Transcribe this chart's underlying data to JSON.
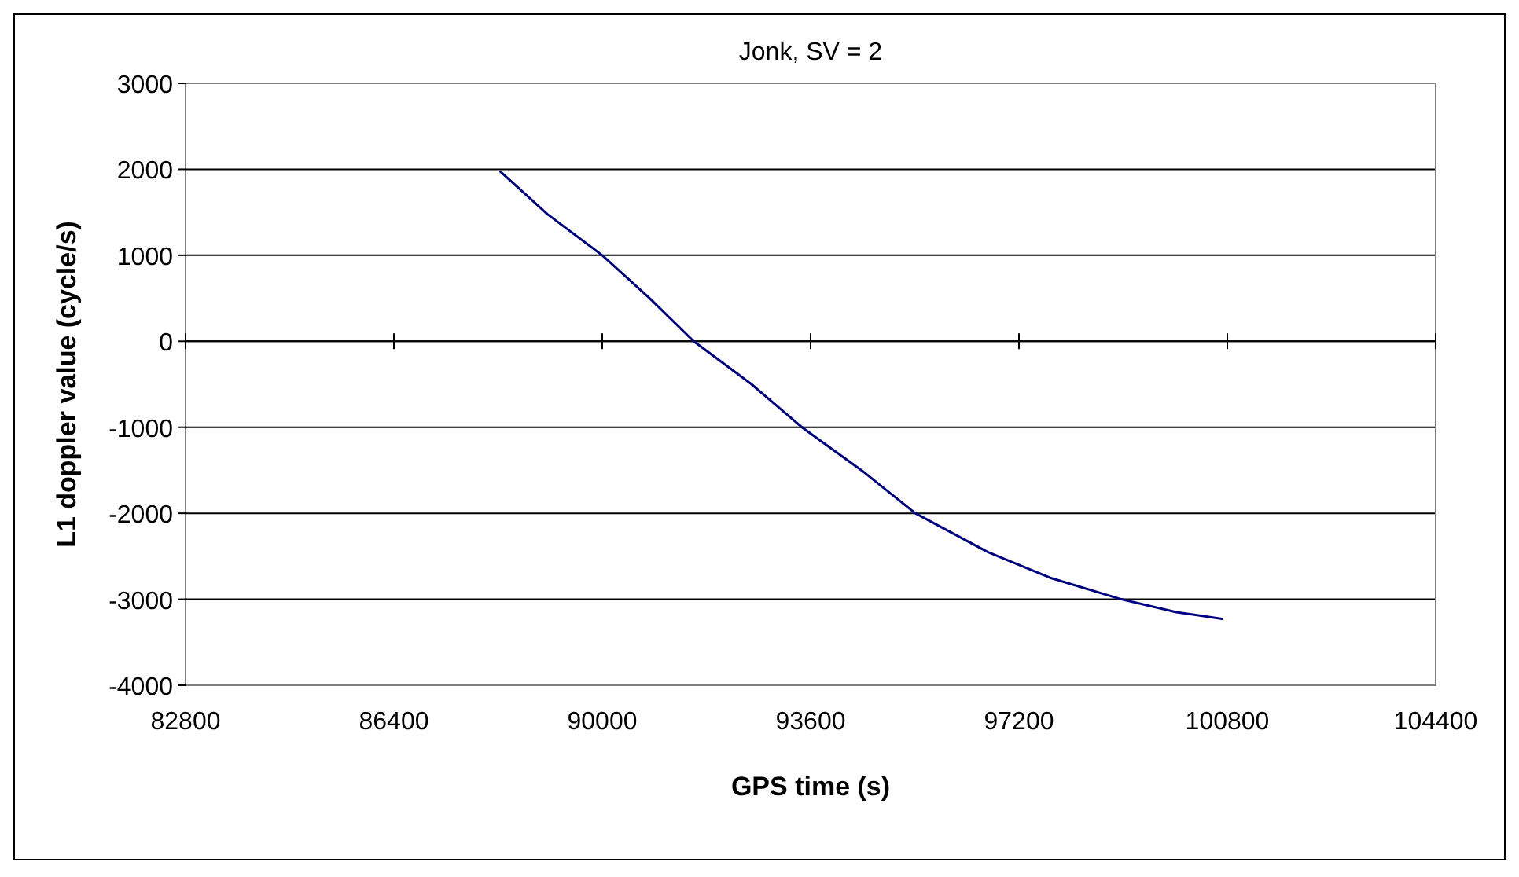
{
  "chart_data": {
    "type": "line",
    "title": "Jonk, SV = 2",
    "xlabel": "GPS time (s)",
    "ylabel": "L1 doppler value (cycle/s)",
    "x": [
      88230,
      89050,
      90000,
      90820,
      91580,
      92580,
      93450,
      94480,
      95410,
      96660,
      97740,
      98970,
      99920,
      100730
    ],
    "series": [
      {
        "color": "#000080",
        "values": [
          1980,
          1480,
          1000,
          500,
          0,
          -500,
          -1000,
          -1500,
          -2000,
          -2450,
          -2750,
          -3000,
          -3150,
          -3230
        ]
      }
    ],
    "xlim": [
      82800,
      104400
    ],
    "xticks": [
      82800,
      86400,
      90000,
      93600,
      97200,
      100800,
      104400
    ],
    "ylim": [
      -4000,
      3000
    ],
    "yticks": [
      -4000,
      -3000,
      -2000,
      -1000,
      0,
      1000,
      2000,
      3000
    ],
    "grid": "y",
    "marker": "none",
    "line_style": "solid"
  }
}
